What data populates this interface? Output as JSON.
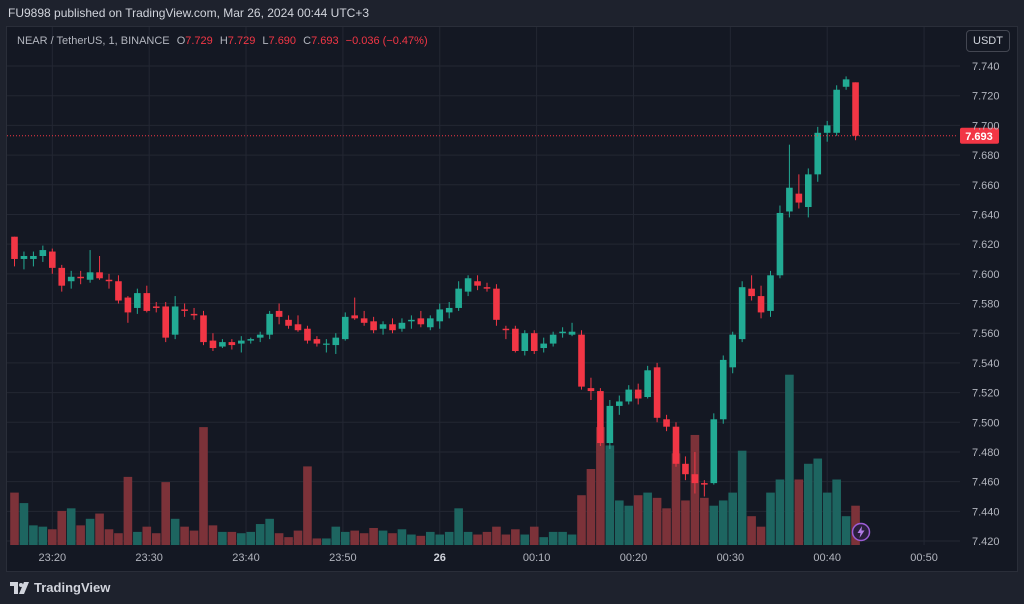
{
  "header": {
    "published_text": "FU9898 published on TradingView.com, Mar 26, 2024 00:44 UTC+3"
  },
  "legend": {
    "symbol": "NEAR / TetherUS, 1, BINANCE",
    "o_label": "O",
    "o_value": "7.729",
    "h_label": "H",
    "h_value": "7.729",
    "l_label": "L",
    "l_value": "7.690",
    "c_label": "C",
    "c_value": "7.693",
    "change": "−0.036 (−0.47%)"
  },
  "currency_button": "USDT",
  "brand": {
    "name": "TradingView"
  },
  "icons": {
    "lightning": "lightning-icon",
    "logo": "tradingview-logo-icon"
  },
  "colors": {
    "up": "#22ab94",
    "down": "#f23645",
    "up_volume": "#1d6560",
    "down_volume": "#7c3239",
    "grid": "#232733",
    "background": "#141823"
  },
  "chart_data": {
    "type": "candlestick",
    "interval": "1 minute",
    "ylim": [
      7.42,
      7.75
    ],
    "y_ticks": [
      "7.740",
      "7.720",
      "7.700",
      "7.680",
      "7.660",
      "7.640",
      "7.620",
      "7.600",
      "7.580",
      "7.560",
      "7.540",
      "7.520",
      "7.500",
      "7.480",
      "7.460",
      "7.440",
      "7.420"
    ],
    "x_ticks": [
      "23:20",
      "23:30",
      "23:40",
      "23:50",
      "26",
      "00:10",
      "00:20",
      "00:30",
      "00:40",
      "00:50"
    ],
    "last_price": "7.693",
    "candles": [
      {
        "o": 7.625,
        "h": 7.625,
        "l": 7.605,
        "c": 7.61,
        "v": 0.4
      },
      {
        "o": 7.61,
        "h": 7.615,
        "l": 7.603,
        "c": 7.612,
        "v": 0.32
      },
      {
        "o": 7.61,
        "h": 7.615,
        "l": 7.605,
        "c": 7.612,
        "v": 0.15
      },
      {
        "o": 7.612,
        "h": 7.619,
        "l": 7.608,
        "c": 7.616,
        "v": 0.14
      },
      {
        "o": 7.615,
        "h": 7.617,
        "l": 7.6,
        "c": 7.604,
        "v": 0.12
      },
      {
        "o": 7.604,
        "h": 7.606,
        "l": 7.588,
        "c": 7.592,
        "v": 0.26
      },
      {
        "o": 7.595,
        "h": 7.602,
        "l": 7.59,
        "c": 7.598,
        "v": 0.28
      },
      {
        "o": 7.598,
        "h": 7.602,
        "l": 7.593,
        "c": 7.597,
        "v": 0.15
      },
      {
        "o": 7.596,
        "h": 7.616,
        "l": 7.594,
        "c": 7.601,
        "v": 0.2
      },
      {
        "o": 7.601,
        "h": 7.612,
        "l": 7.596,
        "c": 7.597,
        "v": 0.24
      },
      {
        "o": 7.596,
        "h": 7.6,
        "l": 7.59,
        "c": 7.595,
        "v": 0.12
      },
      {
        "o": 7.595,
        "h": 7.599,
        "l": 7.58,
        "c": 7.582,
        "v": 0.09
      },
      {
        "o": 7.584,
        "h": 7.585,
        "l": 7.567,
        "c": 7.574,
        "v": 0.52
      },
      {
        "o": 7.577,
        "h": 7.59,
        "l": 7.573,
        "c": 7.587,
        "v": 0.1
      },
      {
        "o": 7.587,
        "h": 7.592,
        "l": 7.574,
        "c": 7.575,
        "v": 0.14
      },
      {
        "o": 7.578,
        "h": 7.581,
        "l": 7.574,
        "c": 7.577,
        "v": 0.09
      },
      {
        "o": 7.578,
        "h": 7.581,
        "l": 7.554,
        "c": 7.557,
        "v": 0.48
      },
      {
        "o": 7.559,
        "h": 7.585,
        "l": 7.556,
        "c": 7.578,
        "v": 0.2
      },
      {
        "o": 7.576,
        "h": 7.58,
        "l": 7.571,
        "c": 7.575,
        "v": 0.14
      },
      {
        "o": 7.573,
        "h": 7.577,
        "l": 7.569,
        "c": 7.572,
        "v": 0.11
      },
      {
        "o": 7.572,
        "h": 7.575,
        "l": 7.552,
        "c": 7.554,
        "v": 0.9
      },
      {
        "o": 7.555,
        "h": 7.56,
        "l": 7.548,
        "c": 7.55,
        "v": 0.15
      },
      {
        "o": 7.551,
        "h": 7.556,
        "l": 7.55,
        "c": 7.554,
        "v": 0.1
      },
      {
        "o": 7.554,
        "h": 7.556,
        "l": 7.549,
        "c": 7.552,
        "v": 0.1
      },
      {
        "o": 7.553,
        "h": 7.558,
        "l": 7.547,
        "c": 7.555,
        "v": 0.09
      },
      {
        "o": 7.555,
        "h": 7.557,
        "l": 7.553,
        "c": 7.556,
        "v": 0.1
      },
      {
        "o": 7.557,
        "h": 7.561,
        "l": 7.554,
        "c": 7.559,
        "v": 0.16
      },
      {
        "o": 7.559,
        "h": 7.575,
        "l": 7.556,
        "c": 7.573,
        "v": 0.2
      },
      {
        "o": 7.575,
        "h": 7.58,
        "l": 7.566,
        "c": 7.571,
        "v": 0.09
      },
      {
        "o": 7.569,
        "h": 7.572,
        "l": 7.563,
        "c": 7.565,
        "v": 0.06
      },
      {
        "o": 7.566,
        "h": 7.572,
        "l": 7.561,
        "c": 7.562,
        "v": 0.11
      },
      {
        "o": 7.563,
        "h": 7.565,
        "l": 7.553,
        "c": 7.555,
        "v": 0.6
      },
      {
        "o": 7.556,
        "h": 7.558,
        "l": 7.551,
        "c": 7.553,
        "v": 0.05
      },
      {
        "o": 7.553,
        "h": 7.556,
        "l": 7.547,
        "c": 7.553,
        "v": 0.05
      },
      {
        "o": 7.552,
        "h": 7.56,
        "l": 7.546,
        "c": 7.557,
        "v": 0.14
      },
      {
        "o": 7.556,
        "h": 7.574,
        "l": 7.555,
        "c": 7.571,
        "v": 0.1
      },
      {
        "o": 7.572,
        "h": 7.584,
        "l": 7.569,
        "c": 7.57,
        "v": 0.11
      },
      {
        "o": 7.57,
        "h": 7.575,
        "l": 7.565,
        "c": 7.567,
        "v": 0.09
      },
      {
        "o": 7.568,
        "h": 7.571,
        "l": 7.56,
        "c": 7.562,
        "v": 0.13
      },
      {
        "o": 7.563,
        "h": 7.568,
        "l": 7.559,
        "c": 7.566,
        "v": 0.11
      },
      {
        "o": 7.566,
        "h": 7.57,
        "l": 7.56,
        "c": 7.562,
        "v": 0.09
      },
      {
        "o": 7.563,
        "h": 7.57,
        "l": 7.561,
        "c": 7.567,
        "v": 0.12
      },
      {
        "o": 7.568,
        "h": 7.572,
        "l": 7.563,
        "c": 7.569,
        "v": 0.08
      },
      {
        "o": 7.57,
        "h": 7.575,
        "l": 7.564,
        "c": 7.566,
        "v": 0.07
      },
      {
        "o": 7.564,
        "h": 7.572,
        "l": 7.562,
        "c": 7.57,
        "v": 0.1
      },
      {
        "o": 7.568,
        "h": 7.58,
        "l": 7.563,
        "c": 7.576,
        "v": 0.08
      },
      {
        "o": 7.574,
        "h": 7.581,
        "l": 7.57,
        "c": 7.577,
        "v": 0.1
      },
      {
        "o": 7.577,
        "h": 7.595,
        "l": 7.575,
        "c": 7.59,
        "v": 0.28
      },
      {
        "o": 7.588,
        "h": 7.599,
        "l": 7.585,
        "c": 7.597,
        "v": 0.1
      },
      {
        "o": 7.595,
        "h": 7.599,
        "l": 7.589,
        "c": 7.592,
        "v": 0.08
      },
      {
        "o": 7.591,
        "h": 7.594,
        "l": 7.588,
        "c": 7.59,
        "v": 0.1
      },
      {
        "o": 7.59,
        "h": 7.593,
        "l": 7.565,
        "c": 7.569,
        "v": 0.14
      },
      {
        "o": 7.563,
        "h": 7.565,
        "l": 7.556,
        "c": 7.562,
        "v": 0.08
      },
      {
        "o": 7.563,
        "h": 7.565,
        "l": 7.547,
        "c": 7.548,
        "v": 0.12
      },
      {
        "o": 7.548,
        "h": 7.562,
        "l": 7.545,
        "c": 7.56,
        "v": 0.08
      },
      {
        "o": 7.56,
        "h": 7.562,
        "l": 7.546,
        "c": 7.548,
        "v": 0.14
      },
      {
        "o": 7.55,
        "h": 7.557,
        "l": 7.547,
        "c": 7.553,
        "v": 0.06
      },
      {
        "o": 7.553,
        "h": 7.561,
        "l": 7.551,
        "c": 7.559,
        "v": 0.1
      },
      {
        "o": 7.56,
        "h": 7.564,
        "l": 7.557,
        "c": 7.561,
        "v": 0.1
      },
      {
        "o": 7.559,
        "h": 7.567,
        "l": 7.558,
        "c": 7.561,
        "v": 0.08
      },
      {
        "o": 7.559,
        "h": 7.562,
        "l": 7.522,
        "c": 7.524,
        "v": 0.38
      },
      {
        "o": 7.523,
        "h": 7.53,
        "l": 7.515,
        "c": 7.521,
        "v": 0.58
      },
      {
        "o": 7.521,
        "h": 7.523,
        "l": 7.484,
        "c": 7.486,
        "v": 0.9
      },
      {
        "o": 7.486,
        "h": 7.515,
        "l": 7.482,
        "c": 7.511,
        "v": 0.76
      },
      {
        "o": 7.511,
        "h": 7.518,
        "l": 7.505,
        "c": 7.514,
        "v": 0.34
      },
      {
        "o": 7.514,
        "h": 7.525,
        "l": 7.512,
        "c": 7.522,
        "v": 0.3
      },
      {
        "o": 7.522,
        "h": 7.526,
        "l": 7.512,
        "c": 7.516,
        "v": 0.38
      },
      {
        "o": 7.517,
        "h": 7.538,
        "l": 7.516,
        "c": 7.535,
        "v": 0.4
      },
      {
        "o": 7.537,
        "h": 7.54,
        "l": 7.5,
        "c": 7.503,
        "v": 0.36
      },
      {
        "o": 7.502,
        "h": 7.505,
        "l": 7.494,
        "c": 7.497,
        "v": 0.28
      },
      {
        "o": 7.497,
        "h": 7.5,
        "l": 7.47,
        "c": 7.472,
        "v": 0.7
      },
      {
        "o": 7.472,
        "h": 7.477,
        "l": 7.461,
        "c": 7.465,
        "v": 0.34
      },
      {
        "o": 7.465,
        "h": 7.48,
        "l": 7.452,
        "c": 7.459,
        "v": 0.84
      },
      {
        "o": 7.459,
        "h": 7.461,
        "l": 7.45,
        "c": 7.458,
        "v": 0.36
      },
      {
        "o": 7.459,
        "h": 7.506,
        "l": 7.458,
        "c": 7.502,
        "v": 0.3
      },
      {
        "o": 7.502,
        "h": 7.545,
        "l": 7.499,
        "c": 7.542,
        "v": 0.34
      },
      {
        "o": 7.537,
        "h": 7.561,
        "l": 7.533,
        "c": 7.559,
        "v": 0.4
      },
      {
        "o": 7.556,
        "h": 7.595,
        "l": 7.554,
        "c": 7.591,
        "v": 0.72
      },
      {
        "o": 7.59,
        "h": 7.599,
        "l": 7.582,
        "c": 7.585,
        "v": 0.22
      },
      {
        "o": 7.585,
        "h": 7.592,
        "l": 7.57,
        "c": 7.574,
        "v": 0.14
      },
      {
        "o": 7.575,
        "h": 7.602,
        "l": 7.571,
        "c": 7.599,
        "v": 0.4
      },
      {
        "o": 7.599,
        "h": 7.646,
        "l": 7.597,
        "c": 7.641,
        "v": 0.5
      },
      {
        "o": 7.642,
        "h": 7.687,
        "l": 7.638,
        "c": 7.658,
        "v": 1.3
      },
      {
        "o": 7.654,
        "h": 7.667,
        "l": 7.644,
        "c": 7.648,
        "v": 0.5
      },
      {
        "o": 7.645,
        "h": 7.671,
        "l": 7.638,
        "c": 7.667,
        "v": 0.62
      },
      {
        "o": 7.667,
        "h": 7.699,
        "l": 7.662,
        "c": 7.695,
        "v": 0.66
      },
      {
        "o": 7.695,
        "h": 7.703,
        "l": 7.689,
        "c": 7.7,
        "v": 0.4
      },
      {
        "o": 7.695,
        "h": 7.727,
        "l": 7.693,
        "c": 7.724,
        "v": 0.5
      },
      {
        "o": 7.726,
        "h": 7.733,
        "l": 7.724,
        "c": 7.731,
        "v": 0.22
      },
      {
        "o": 7.729,
        "h": 7.729,
        "l": 7.69,
        "c": 7.693,
        "v": 0.3
      }
    ]
  }
}
